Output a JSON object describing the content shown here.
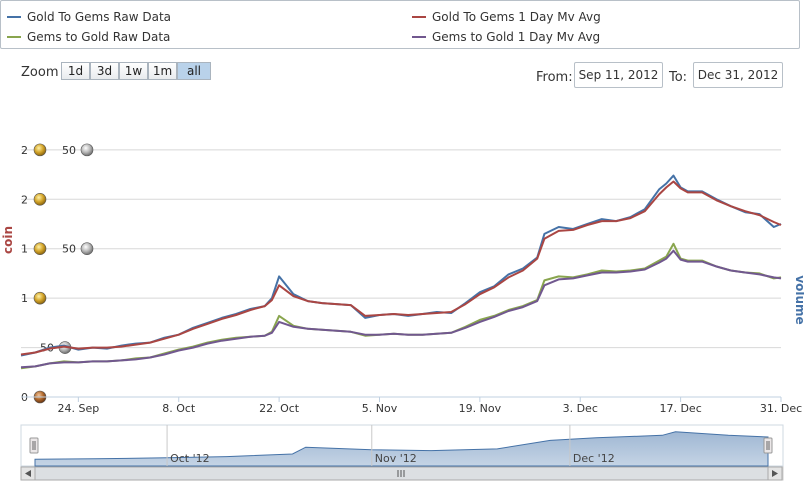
{
  "legend": {
    "items": [
      {
        "label": "Gold To Gems Raw Data",
        "color": "#4572a7"
      },
      {
        "label": "Gold To Gems 1 Day Mv Avg",
        "color": "#aa4643"
      },
      {
        "label": "Gems to Gold Raw Data",
        "color": "#89a54e"
      },
      {
        "label": "Gems to Gold 1 Day Mv Avg",
        "color": "#71588f"
      }
    ]
  },
  "toolbar": {
    "zoom_label": "Zoom",
    "zoom_buttons": [
      "1d",
      "3d",
      "1w",
      "1m",
      "all"
    ],
    "active_zoom": "all",
    "from_label": "From:",
    "from_value": "Sep 11, 2012",
    "to_label": "To:",
    "to_value": "Dec 31, 2012"
  },
  "icons": {
    "gold": "gold-coin-icon",
    "silver": "silver-coin-icon",
    "copper": "copper-coin-icon"
  },
  "chart_data": {
    "type": "line",
    "ylabel": "coin",
    "y2label": "volume",
    "grid": true,
    "y_ticks": [
      {
        "value": 0,
        "gold": "",
        "silver": "",
        "copper": "0"
      },
      {
        "value": 50,
        "gold": "",
        "silver": "50",
        "copper": ""
      },
      {
        "value": 100,
        "gold": "1",
        "silver": "",
        "copper": ""
      },
      {
        "value": 150,
        "gold": "1",
        "silver": "50",
        "copper": ""
      },
      {
        "value": 200,
        "gold": "2",
        "silver": "",
        "copper": ""
      },
      {
        "value": 250,
        "gold": "2",
        "silver": "50",
        "copper": ""
      }
    ],
    "ylim": [
      0,
      260
    ],
    "xlim": [
      "2012-09-16",
      "2012-12-31"
    ],
    "x_ticks": [
      {
        "label": "24. Sep",
        "date": "2012-09-24"
      },
      {
        "label": "8. Oct",
        "date": "2012-10-08"
      },
      {
        "label": "22. Oct",
        "date": "2012-10-22"
      },
      {
        "label": "5. Nov",
        "date": "2012-11-05"
      },
      {
        "label": "19. Nov",
        "date": "2012-11-19"
      },
      {
        "label": "3. Dec",
        "date": "2012-12-03"
      },
      {
        "label": "17. Dec",
        "date": "2012-12-17"
      },
      {
        "label": "31. Dec",
        "date": "2012-12-31"
      }
    ],
    "series": [
      {
        "name": "Gold To Gems Raw Data",
        "color": "#4572a7",
        "width": 2,
        "x": [
          "2012-09-16",
          "2012-09-18",
          "2012-09-20",
          "2012-09-22",
          "2012-09-24",
          "2012-09-26",
          "2012-09-28",
          "2012-09-30",
          "2012-10-02",
          "2012-10-04",
          "2012-10-06",
          "2012-10-08",
          "2012-10-10",
          "2012-10-12",
          "2012-10-14",
          "2012-10-16",
          "2012-10-18",
          "2012-10-20",
          "2012-10-21",
          "2012-10-22",
          "2012-10-24",
          "2012-10-26",
          "2012-10-28",
          "2012-10-30",
          "2012-11-01",
          "2012-11-03",
          "2012-11-05",
          "2012-11-07",
          "2012-11-09",
          "2012-11-11",
          "2012-11-13",
          "2012-11-15",
          "2012-11-17",
          "2012-11-19",
          "2012-11-21",
          "2012-11-23",
          "2012-11-25",
          "2012-11-27",
          "2012-11-28",
          "2012-11-30",
          "2012-12-02",
          "2012-12-04",
          "2012-12-06",
          "2012-12-08",
          "2012-12-10",
          "2012-12-12",
          "2012-12-14",
          "2012-12-15",
          "2012-12-16",
          "2012-12-17",
          "2012-12-18",
          "2012-12-20",
          "2012-12-22",
          "2012-12-24",
          "2012-12-26",
          "2012-12-28",
          "2012-12-30",
          "2012-12-31"
        ],
        "values": [
          42,
          45,
          50,
          52,
          48,
          50,
          49,
          52,
          54,
          55,
          60,
          63,
          70,
          75,
          80,
          84,
          89,
          92,
          100,
          122,
          104,
          97,
          95,
          94,
          93,
          80,
          83,
          84,
          82,
          84,
          86,
          85,
          95,
          106,
          112,
          124,
          130,
          141,
          165,
          172,
          170,
          175,
          180,
          178,
          182,
          190,
          210,
          216,
          224,
          212,
          208,
          208,
          200,
          193,
          187,
          185,
          172,
          175
        ]
      },
      {
        "name": "Gold To Gems 1 Day Mv Avg",
        "color": "#aa4643",
        "width": 2,
        "x": [
          "2012-09-16",
          "2012-09-18",
          "2012-09-20",
          "2012-09-22",
          "2012-09-24",
          "2012-09-26",
          "2012-09-28",
          "2012-09-30",
          "2012-10-02",
          "2012-10-04",
          "2012-10-06",
          "2012-10-08",
          "2012-10-10",
          "2012-10-12",
          "2012-10-14",
          "2012-10-16",
          "2012-10-18",
          "2012-10-20",
          "2012-10-21",
          "2012-10-22",
          "2012-10-24",
          "2012-10-26",
          "2012-10-28",
          "2012-10-30",
          "2012-11-01",
          "2012-11-03",
          "2012-11-05",
          "2012-11-07",
          "2012-11-09",
          "2012-11-11",
          "2012-11-13",
          "2012-11-15",
          "2012-11-17",
          "2012-11-19",
          "2012-11-21",
          "2012-11-23",
          "2012-11-25",
          "2012-11-27",
          "2012-11-28",
          "2012-11-30",
          "2012-12-02",
          "2012-12-04",
          "2012-12-06",
          "2012-12-08",
          "2012-12-10",
          "2012-12-12",
          "2012-12-14",
          "2012-12-15",
          "2012-12-16",
          "2012-12-17",
          "2012-12-18",
          "2012-12-20",
          "2012-12-22",
          "2012-12-24",
          "2012-12-26",
          "2012-12-28",
          "2012-12-30",
          "2012-12-31"
        ],
        "values": [
          43,
          45,
          49,
          51,
          49,
          50,
          50,
          51,
          53,
          55,
          59,
          63,
          69,
          74,
          79,
          83,
          88,
          92,
          98,
          113,
          102,
          97,
          95,
          94,
          93,
          82,
          83,
          84,
          83,
          84,
          85,
          86,
          94,
          104,
          111,
          121,
          128,
          140,
          160,
          168,
          169,
          174,
          178,
          178,
          181,
          188,
          205,
          212,
          218,
          211,
          207,
          207,
          199,
          193,
          188,
          184,
          177,
          174
        ]
      },
      {
        "name": "Gems to Gold Raw Data",
        "color": "#89a54e",
        "width": 2,
        "x": [
          "2012-09-16",
          "2012-09-18",
          "2012-09-20",
          "2012-09-22",
          "2012-09-24",
          "2012-09-26",
          "2012-09-28",
          "2012-09-30",
          "2012-10-02",
          "2012-10-04",
          "2012-10-06",
          "2012-10-08",
          "2012-10-10",
          "2012-10-12",
          "2012-10-14",
          "2012-10-16",
          "2012-10-18",
          "2012-10-20",
          "2012-10-21",
          "2012-10-22",
          "2012-10-24",
          "2012-10-26",
          "2012-10-28",
          "2012-10-30",
          "2012-11-01",
          "2012-11-03",
          "2012-11-05",
          "2012-11-07",
          "2012-11-09",
          "2012-11-11",
          "2012-11-13",
          "2012-11-15",
          "2012-11-17",
          "2012-11-19",
          "2012-11-21",
          "2012-11-23",
          "2012-11-25",
          "2012-11-27",
          "2012-11-28",
          "2012-11-30",
          "2012-12-02",
          "2012-12-04",
          "2012-12-06",
          "2012-12-08",
          "2012-12-10",
          "2012-12-12",
          "2012-12-14",
          "2012-12-15",
          "2012-12-16",
          "2012-12-17",
          "2012-12-18",
          "2012-12-20",
          "2012-12-22",
          "2012-12-24",
          "2012-12-26",
          "2012-12-28",
          "2012-12-30",
          "2012-12-31"
        ],
        "values": [
          29,
          31,
          34,
          36,
          35,
          36,
          36,
          37,
          39,
          40,
          44,
          48,
          51,
          55,
          58,
          60,
          61,
          62,
          66,
          82,
          72,
          69,
          68,
          67,
          66,
          62,
          63,
          64,
          63,
          63,
          64,
          65,
          71,
          78,
          82,
          88,
          92,
          98,
          118,
          122,
          121,
          124,
          128,
          127,
          128,
          130,
          138,
          142,
          155,
          140,
          138,
          138,
          132,
          128,
          126,
          125,
          120,
          121
        ]
      },
      {
        "name": "Gems to Gold 1 Day Mv Avg",
        "color": "#71588f",
        "width": 2,
        "x": [
          "2012-09-16",
          "2012-09-18",
          "2012-09-20",
          "2012-09-22",
          "2012-09-24",
          "2012-09-26",
          "2012-09-28",
          "2012-09-30",
          "2012-10-02",
          "2012-10-04",
          "2012-10-06",
          "2012-10-08",
          "2012-10-10",
          "2012-10-12",
          "2012-10-14",
          "2012-10-16",
          "2012-10-18",
          "2012-10-20",
          "2012-10-21",
          "2012-10-22",
          "2012-10-24",
          "2012-10-26",
          "2012-10-28",
          "2012-10-30",
          "2012-11-01",
          "2012-11-03",
          "2012-11-05",
          "2012-11-07",
          "2012-11-09",
          "2012-11-11",
          "2012-11-13",
          "2012-11-15",
          "2012-11-17",
          "2012-11-19",
          "2012-11-21",
          "2012-11-23",
          "2012-11-25",
          "2012-11-27",
          "2012-11-28",
          "2012-11-30",
          "2012-12-02",
          "2012-12-04",
          "2012-12-06",
          "2012-12-08",
          "2012-12-10",
          "2012-12-12",
          "2012-12-14",
          "2012-12-15",
          "2012-12-16",
          "2012-12-17",
          "2012-12-18",
          "2012-12-20",
          "2012-12-22",
          "2012-12-24",
          "2012-12-26",
          "2012-12-28",
          "2012-12-30",
          "2012-12-31"
        ],
        "values": [
          30,
          31,
          34,
          35,
          35,
          36,
          36,
          37,
          38,
          40,
          43,
          47,
          50,
          54,
          57,
          59,
          61,
          62,
          65,
          76,
          71,
          69,
          68,
          67,
          66,
          63,
          63,
          64,
          63,
          63,
          64,
          65,
          70,
          76,
          81,
          87,
          91,
          97,
          113,
          119,
          120,
          123,
          126,
          126,
          127,
          129,
          136,
          140,
          148,
          139,
          137,
          137,
          132,
          128,
          126,
          124,
          121,
          120
        ]
      }
    ],
    "navigator": {
      "x_ticks": [
        {
          "label": "Oct '12",
          "date": "2012-10-01"
        },
        {
          "label": "Nov '12",
          "date": "2012-11-01"
        },
        {
          "label": "Dec '12",
          "date": "2012-12-01"
        }
      ],
      "xlim": [
        "2012-09-11",
        "2012-12-31"
      ],
      "x": [
        "2012-09-11",
        "2012-09-20",
        "2012-10-01",
        "2012-10-10",
        "2012-10-20",
        "2012-10-22",
        "2012-11-01",
        "2012-11-10",
        "2012-11-20",
        "2012-11-28",
        "2012-12-05",
        "2012-12-15",
        "2012-12-17",
        "2012-12-25",
        "2012-12-31"
      ],
      "values": [
        40,
        42,
        48,
        55,
        70,
        110,
        95,
        90,
        100,
        150,
        165,
        180,
        200,
        180,
        170
      ],
      "ylim": [
        0,
        240
      ]
    }
  }
}
